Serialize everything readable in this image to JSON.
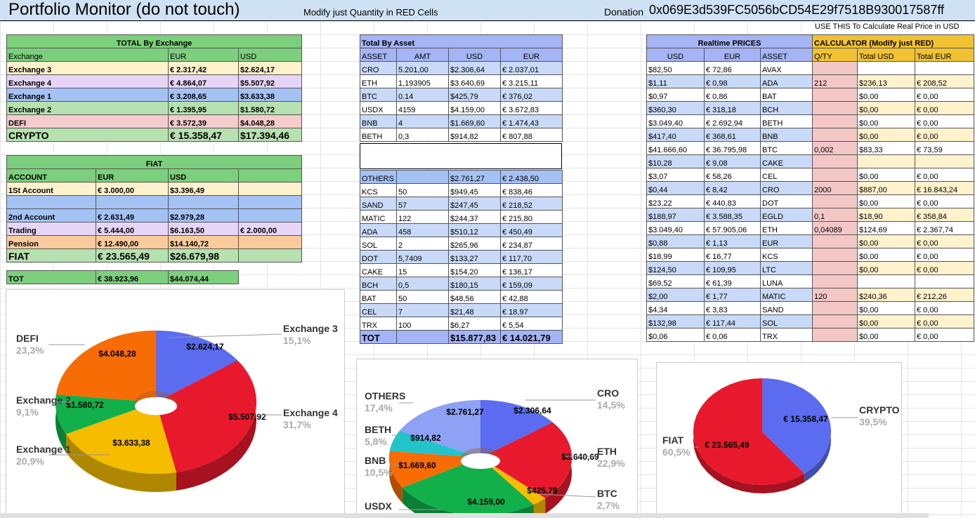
{
  "header": {
    "title": "Portfolio Monitor (do not touch)",
    "modify": "Modify just Quantity in RED Cells",
    "donation_label": "Donation",
    "donation_address": "0x069E3d539FC5056bCD54E29f7518B930017587ff"
  },
  "use_note": "USE THIS To Calculate Real Price in USD",
  "colors": {
    "green": "#7ccf7c",
    "yellow": "#fff2cc",
    "purple": "#e6d5f7",
    "blue": "#a4c2f4",
    "lgreen": "#b7e1b0",
    "pink": "#f4cccc",
    "orange": "#f9cb9c",
    "lblue": "#c9daf8",
    "accent_red": "#f4c7c7",
    "calc_header": "#f1c232"
  },
  "exchange": {
    "title": "TOTAL By Exchange",
    "headers": [
      "Exchange",
      "EUR",
      "USD"
    ],
    "rows": [
      {
        "name": "Exchange 3",
        "eur": "€ 2.317,42",
        "usd": "$2.624,17",
        "bg": "#fff2cc"
      },
      {
        "name": "Exchange 4",
        "eur": "€ 4.864,07",
        "usd": "$5.507,92",
        "bg": "#e6d5f7"
      },
      {
        "name": "Exchange 1",
        "eur": "€ 3.208,65",
        "usd": "$3.633,38",
        "bg": "#a4c2f4"
      },
      {
        "name": "Exchange 2",
        "eur": "€ 1.395,95",
        "usd": "$1.580,72",
        "bg": "#b7e1b0"
      },
      {
        "name": "DEFI",
        "eur": "€ 3.572,39",
        "usd": "$4.048,28",
        "bg": "#f4cccc"
      },
      {
        "name": "CRYPTO",
        "eur": "€ 15.358,47",
        "usd": "$17.394,46",
        "bg": "#b7e1b0"
      }
    ]
  },
  "fiat": {
    "title": "FIAT",
    "headers": [
      "ACCOUNT",
      "EUR",
      "USD"
    ],
    "rows": [
      {
        "name": "1St Account",
        "eur": "€ 3.000,00",
        "usd": "$3.396,49",
        "extra": "",
        "bg": "#fff2cc"
      },
      {
        "name": "2nd Account",
        "eur": "€ 2.631,49",
        "usd": "$2.979,28",
        "extra": "",
        "bg": "#a4c2f4"
      },
      {
        "name": "Trading",
        "eur": "€ 5.444,00",
        "usd": "$6.163,50",
        "extra": "€ 2.000,00",
        "bg": "#e6d5f7"
      },
      {
        "name": "Pension",
        "eur": "€ 12.490,00",
        "usd": "$14.140,72",
        "extra": "",
        "bg": "#f9cb9c"
      },
      {
        "name": "FIAT",
        "eur": "€ 23.565,49",
        "usd": "$26.679,98",
        "extra": "",
        "bg": "#b7e1b0"
      }
    ],
    "tot": {
      "name": "TOT",
      "eur": "€ 38.923,96",
      "usd": "$44.074,44"
    }
  },
  "asset": {
    "title": "Total By Asset",
    "headers": [
      "ASSET",
      "AMT",
      "USD",
      "EUR"
    ],
    "rows": [
      [
        "CRO",
        "5.201,00",
        "$2.306,64",
        "€ 2.037,01"
      ],
      [
        "ETH",
        "1,193905",
        "$3.640,69",
        "€ 3.215,11"
      ],
      [
        "BTC",
        "0.14",
        "$425,79",
        "€ 376,02"
      ],
      [
        "USDX",
        "4159",
        "$4.159,00",
        "€ 3.672,83"
      ],
      [
        "BNB",
        "4",
        "$1.669,60",
        "€ 1.474,43"
      ],
      [
        "BETH",
        "0,3",
        "$914,82",
        "€ 807,88"
      ]
    ],
    "rows2": [
      [
        "OTHERS",
        "",
        "$2.761,27",
        "€ 2.438,50"
      ],
      [
        "KCS",
        "50",
        "$949,45",
        "€ 838,46"
      ],
      [
        "SAND",
        "57",
        "$247,45",
        "€ 218,52"
      ],
      [
        "MATIC",
        "122",
        "$244,37",
        "€ 215,80"
      ],
      [
        "ADA",
        "458",
        "$510,12",
        "€ 450,49"
      ],
      [
        "SOL",
        "2",
        "$265,96",
        "€ 234,87"
      ],
      [
        "DOT",
        "5,7409",
        "$133,27",
        "€ 117,70"
      ],
      [
        "CAKE",
        "15",
        "$154,20",
        "€ 136,17"
      ],
      [
        "BCH",
        "0,5",
        "$180,15",
        "€ 159,09"
      ],
      [
        "BAT",
        "50",
        "$48,56",
        "€ 42,88"
      ],
      [
        "CEL",
        "7",
        "$21,48",
        "€ 18,97"
      ],
      [
        "TRX",
        "100",
        "$6,27",
        "€ 5,54"
      ]
    ],
    "tot": [
      "TOT",
      "",
      "$15.877,83",
      "€ 14.021,79"
    ]
  },
  "prices": {
    "title": "Realtime PRICES",
    "headers": [
      "USD",
      "EUR",
      "ASSET"
    ],
    "calc_title": "CALCULATOR (Modify just RED)",
    "calc_headers": [
      "Q/TY",
      "Total USD",
      "Total EUR"
    ],
    "rows": [
      [
        "$82,50",
        "€ 72,86",
        "AVAX",
        "",
        "",
        ""
      ],
      [
        "$1,11",
        "€ 0,98",
        "ADA",
        "212",
        "$236,13",
        "€ 208,52"
      ],
      [
        "$0,97",
        "€ 0,86",
        "BAT",
        "",
        "$0,00",
        "€ 0,00"
      ],
      [
        "$360,30",
        "€ 318,18",
        "BCH",
        "",
        "$0,00",
        "€ 0,00"
      ],
      [
        "$3.049,40",
        "€ 2.692,94",
        "BETH",
        "",
        "$0,00",
        "€ 0,00"
      ],
      [
        "$417,40",
        "€ 368,61",
        "BNB",
        "",
        "$0,00",
        "€ 0,00"
      ],
      [
        "$41.666,60",
        "€ 36.795,98",
        "BTC",
        "0,002",
        "$83,33",
        "€ 73,59"
      ],
      [
        "$10,28",
        "€ 9,08",
        "CAKE",
        "",
        "",
        ""
      ],
      [
        "$3,07",
        "€ 58,26",
        "CEL",
        "",
        "$0,00",
        "€ 0,00"
      ],
      [
        "$0,44",
        "€ 8,42",
        "CRO",
        "2000",
        "$887,00",
        "€ 16.843,24"
      ],
      [
        "$23,22",
        "€ 440,83",
        "DOT",
        "",
        "$0,00",
        "€ 0,00"
      ],
      [
        "$188,97",
        "€ 3.588,35",
        "EGLD",
        "0,1",
        "$18,90",
        "€ 358,84"
      ],
      [
        "$3.049,40",
        "€ 57.905,06",
        "ETH",
        "0,04089",
        "$124,69",
        "€ 2.367,74"
      ],
      [
        "$0,88",
        "€ 1,13",
        "EUR",
        "",
        "$0,00",
        "€ 0,00"
      ],
      [
        "$18,99",
        "€ 16,77",
        "KCS",
        "",
        "$0,00",
        "€ 0,00"
      ],
      [
        "$124,50",
        "€ 109,95",
        "LTC",
        "",
        "$0,00",
        "€ 0,00"
      ],
      [
        "$69,52",
        "€ 61,39",
        "LUNA",
        "",
        "",
        ""
      ],
      [
        "$2,00",
        "€ 1,77",
        "MATIC",
        "120",
        "$240,36",
        "€ 212,26"
      ],
      [
        "$4,34",
        "€ 3,83",
        "SAND",
        "",
        "$0,00",
        "€ 0,00"
      ],
      [
        "$132,98",
        "€ 117,44",
        "SOL",
        "",
        "$0,00",
        "€ 0,00"
      ],
      [
        "$0,06",
        "€ 0,06",
        "TRX",
        "",
        "$0,00",
        "€ 0,00"
      ]
    ]
  },
  "chart_data": [
    {
      "type": "pie",
      "categories": [
        "Exchange 3",
        "Exchange 4",
        "Exchange 1",
        "Exchange 2",
        "DEFI"
      ],
      "values": [
        2624.17,
        5507.92,
        3633.38,
        1580.72,
        4048.28
      ],
      "value_labels": [
        "$2.624,17",
        "$5.507,92",
        "$3.633,38",
        "$1.580,72",
        "$4.048,28"
      ],
      "percent_labels": [
        "15,1%",
        "31,7%",
        "20,9%",
        "9,1%",
        "23,3%"
      ],
      "colors": [
        "#5b6cf0",
        "#e8192c",
        "#f5bc00",
        "#11b04a",
        "#f76c05"
      ]
    },
    {
      "type": "pie",
      "categories": [
        "CRO",
        "ETH",
        "BTC",
        "USDX",
        "BNB",
        "BETH",
        "OTHERS"
      ],
      "values": [
        2306.64,
        3640.69,
        425.79,
        4159.0,
        1669.6,
        914.82,
        2761.27
      ],
      "value_labels": [
        "$2.306,64",
        "$3.640,69",
        "$425,79",
        "$4.159,00",
        "$1.669,60",
        "$914,82",
        "$2.761,27"
      ],
      "percent_labels": [
        "14,5%",
        "22,9%",
        "2,7%",
        "",
        "10,5%",
        "5,8%",
        "17,4%"
      ],
      "colors": [
        "#5b6cf0",
        "#e8192c",
        "#f5bc00",
        "#11b04a",
        "#f76c05",
        "#22c3c9",
        "#8ea1f5"
      ]
    },
    {
      "type": "pie",
      "categories": [
        "CRYPTO",
        "FIAT"
      ],
      "values": [
        15358.47,
        23565.49
      ],
      "value_labels": [
        "€ 15.358,47",
        "€ 23.565,49"
      ],
      "percent_labels": [
        "39,5%",
        "60,5%"
      ],
      "colors": [
        "#5b6cf0",
        "#e8192c"
      ]
    }
  ]
}
